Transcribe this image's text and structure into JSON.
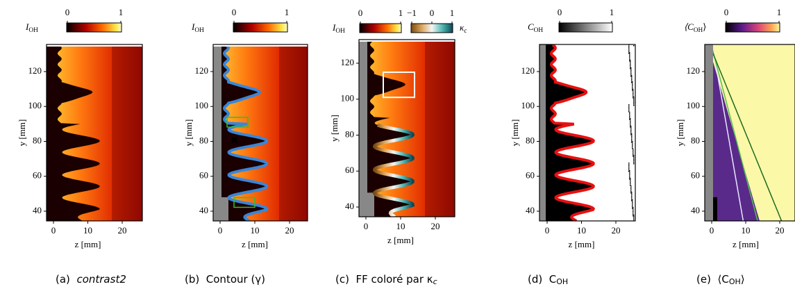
{
  "figure": {
    "panels": [
      {
        "caption": {
          "label": "(a)",
          "text": "contrast2"
        },
        "colorbars": [
          {
            "label": {
              "main": "I",
              "sub": "OH"
            },
            "ticks": [
              0,
              1
            ]
          }
        ],
        "yticks": [
          40,
          60,
          80,
          100,
          120
        ],
        "xticks": [
          0,
          10,
          20
        ],
        "ylabel": "y [mm]",
        "xlabel": "z [mm]"
      },
      {
        "caption": {
          "label": "(b)",
          "text": "Contour (γ)"
        },
        "colorbars": [
          {
            "label": {
              "main": "I",
              "sub": "OH"
            },
            "ticks": [
              0,
              1
            ]
          }
        ],
        "yticks": [
          40,
          60,
          80,
          100,
          120
        ],
        "xticks": [
          0,
          10,
          20
        ],
        "ylabel": "y [mm]",
        "xlabel": "z [mm]"
      },
      {
        "caption": {
          "label": "(c)",
          "text": "FF coloré par κ",
          "sub": "c"
        },
        "colorbars": [
          {
            "label": {
              "main": "I",
              "sub": "OH"
            },
            "ticks": [
              0,
              1
            ]
          },
          {
            "label": {
              "main": "κ",
              "sub": "c"
            },
            "ticks": [
              {
                "value": -1,
                "label": "−1"
              },
              0,
              1
            ]
          }
        ],
        "yticks": [
          40,
          60,
          80,
          100,
          120
        ],
        "xticks": [
          0,
          10,
          20
        ],
        "ylabel": "y [mm]",
        "xlabel": "z [mm]"
      },
      {
        "caption": {
          "label": "(d)",
          "text": "C",
          "sub": "OH"
        },
        "colorbars": [
          {
            "label": {
              "main": "C",
              "sub": "OH"
            },
            "ticks": [
              0,
              1
            ]
          }
        ],
        "yticks": [
          40,
          60,
          80,
          100,
          120
        ],
        "xticks": [
          0,
          10,
          20
        ],
        "ylabel": "y [mm]",
        "xlabel": "z [mm]"
      },
      {
        "caption": {
          "label": "(e)",
          "text": "⟨C",
          "sub": "OH",
          "tail": "⟩"
        },
        "colorbars": [
          {
            "label": {
              "main": "⟨C",
              "sub": "OH",
              "tail": "⟩"
            },
            "ticks": [
              0,
              1
            ]
          }
        ],
        "yticks": [
          40,
          60,
          80,
          100,
          120
        ],
        "xticks": [
          0,
          10,
          20
        ],
        "ylabel": "y [mm]",
        "xlabel": "z [mm]"
      }
    ]
  }
}
